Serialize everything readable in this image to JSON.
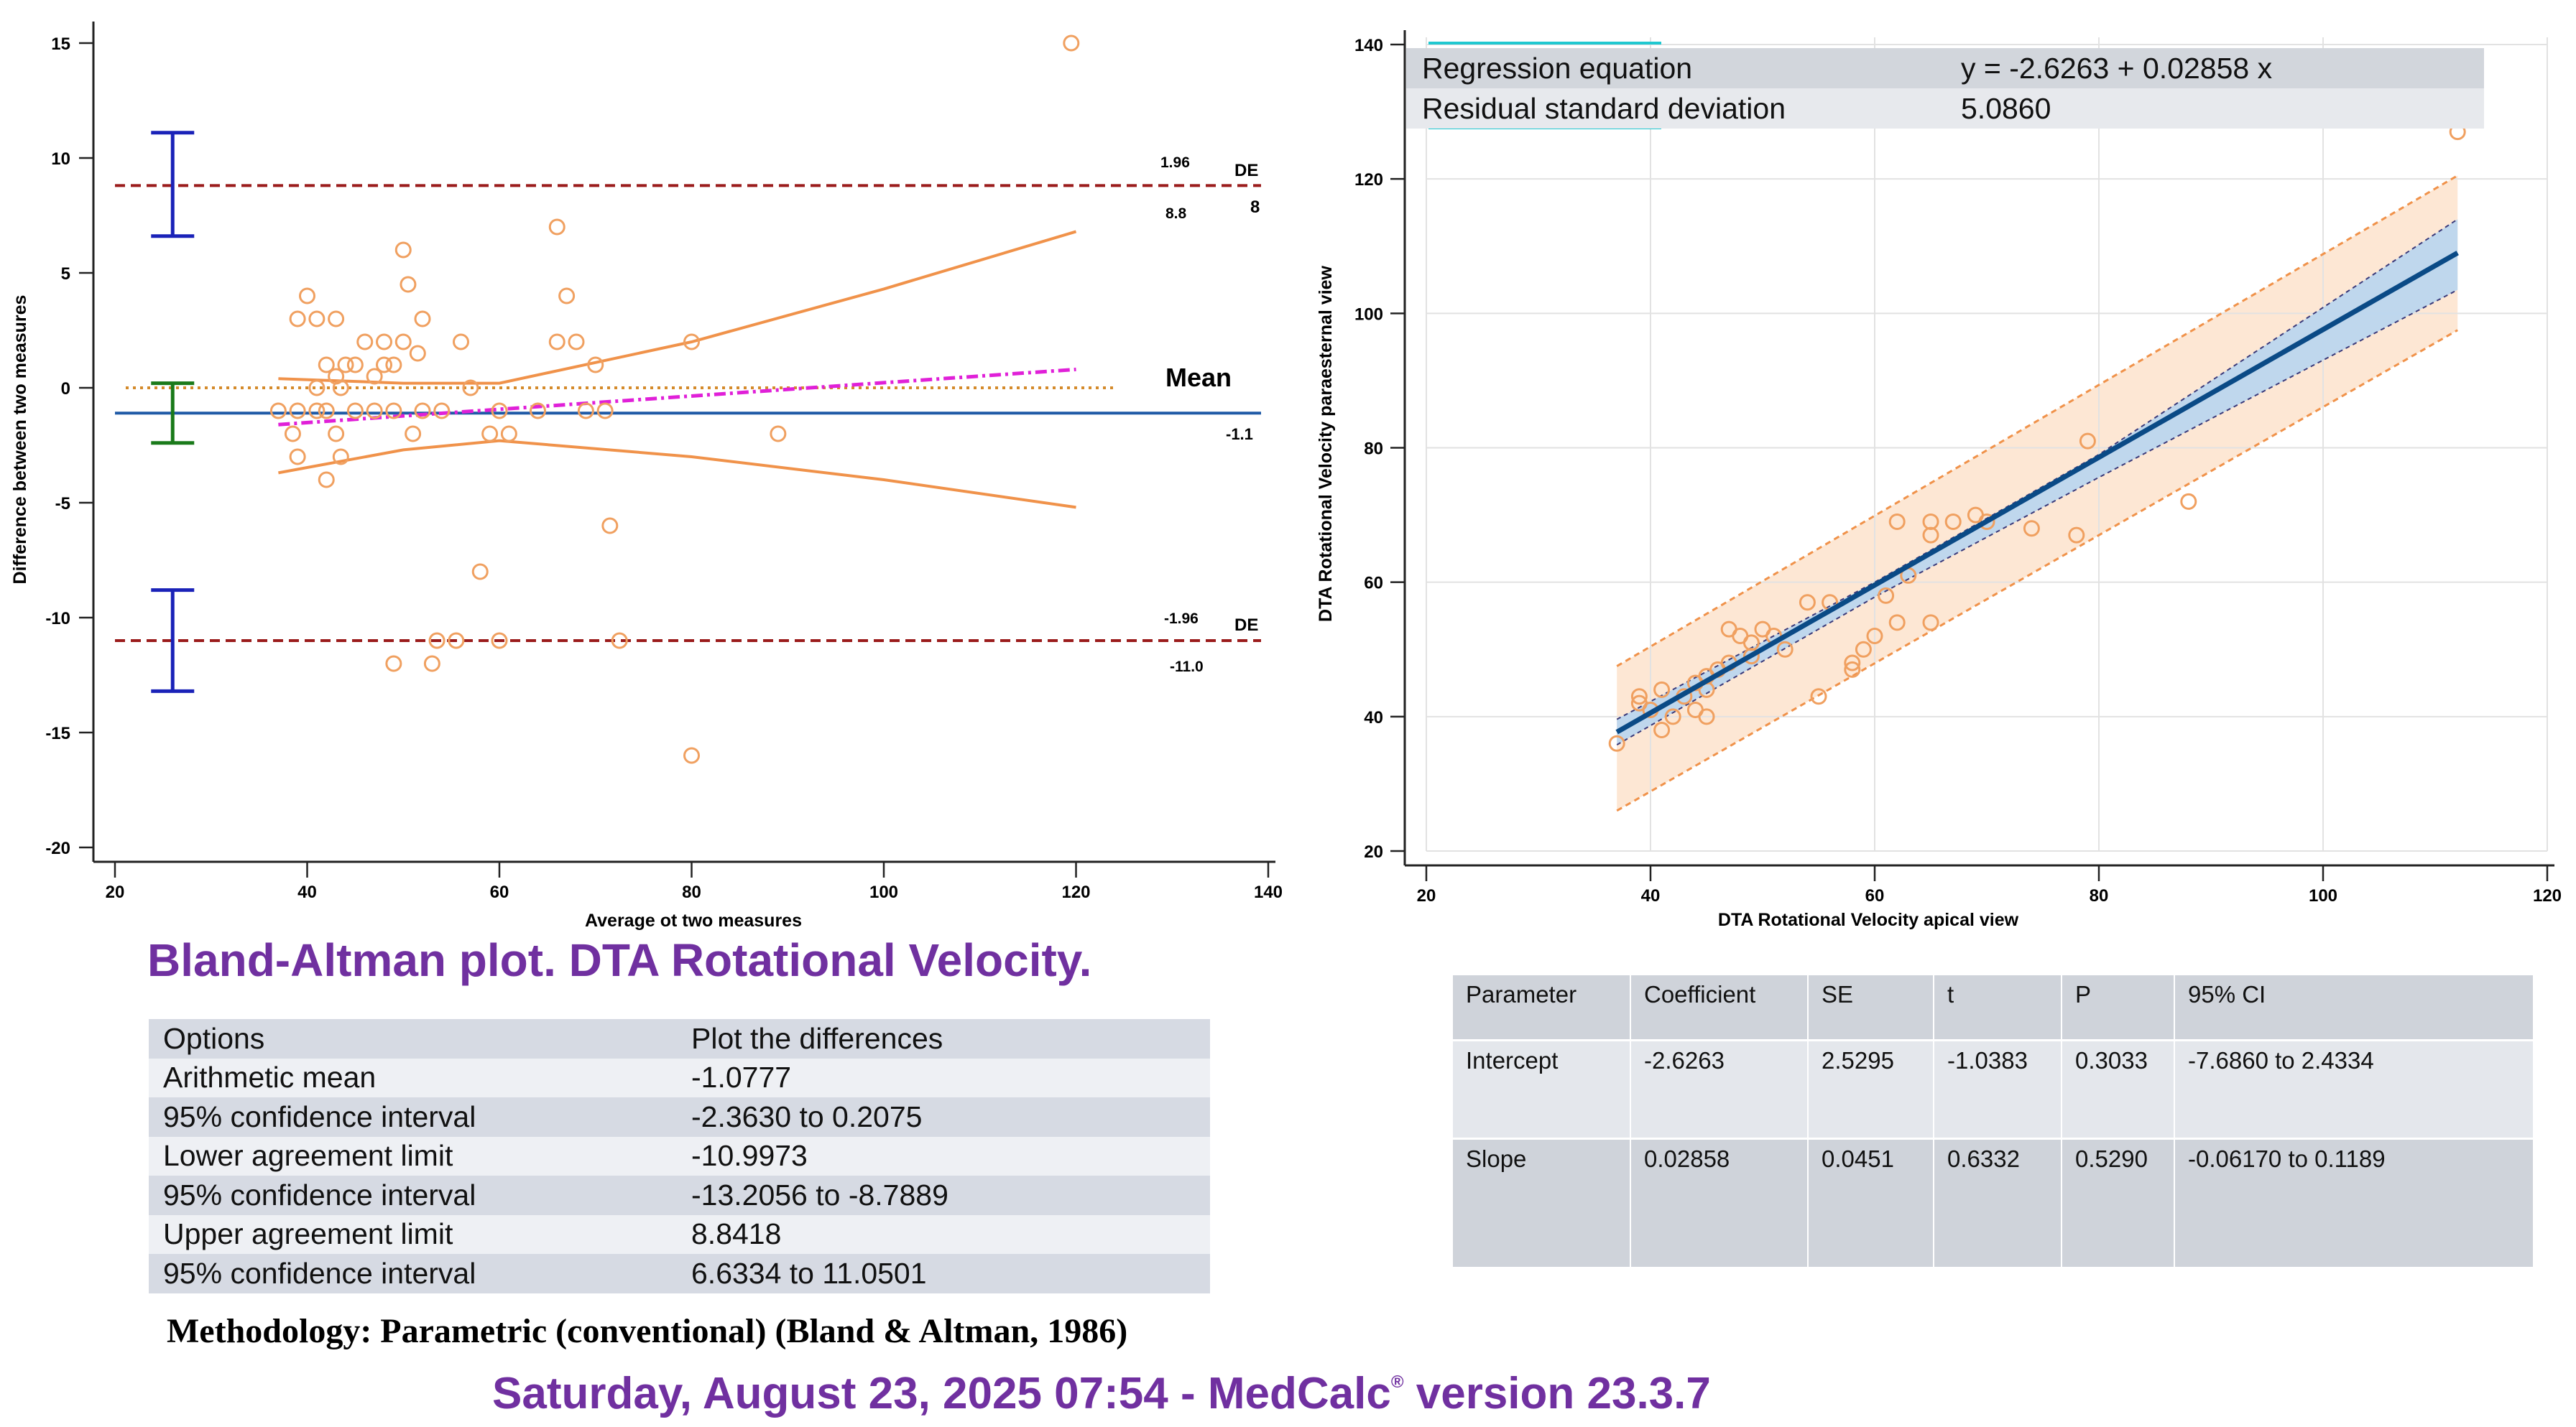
{
  "chart_data": [
    {
      "type": "scatter",
      "title": "",
      "xlabel": "Average ot two measures",
      "ylabel": "Difference between two measures",
      "xlim": [
        20,
        140
      ],
      "ylim": [
        -20,
        15
      ],
      "xticks": [
        20,
        40,
        60,
        80,
        100,
        120,
        140
      ],
      "yticks": [
        15,
        10,
        5,
        0,
        -5,
        -10,
        -15,
        -20
      ],
      "points": [
        [
          119.5,
          15
        ],
        [
          66,
          7
        ],
        [
          50,
          6
        ],
        [
          40,
          4
        ],
        [
          67,
          4
        ],
        [
          50.5,
          4.5
        ],
        [
          39,
          3
        ],
        [
          41,
          3
        ],
        [
          43,
          3
        ],
        [
          52,
          3
        ],
        [
          46,
          2
        ],
        [
          48,
          2
        ],
        [
          50,
          2
        ],
        [
          56,
          2
        ],
        [
          66,
          2
        ],
        [
          68,
          2
        ],
        [
          80,
          2
        ],
        [
          51.5,
          1.5
        ],
        [
          42,
          1
        ],
        [
          44,
          1
        ],
        [
          48,
          1
        ],
        [
          49,
          1
        ],
        [
          70,
          1
        ],
        [
          45,
          1
        ],
        [
          43,
          0.5
        ],
        [
          47,
          0.5
        ],
        [
          41,
          0
        ],
        [
          43.5,
          0
        ],
        [
          57,
          0
        ],
        [
          37,
          -1
        ],
        [
          39,
          -1
        ],
        [
          41,
          -1
        ],
        [
          42,
          -1
        ],
        [
          45,
          -1
        ],
        [
          47,
          -1
        ],
        [
          49,
          -1
        ],
        [
          52,
          -1
        ],
        [
          54,
          -1
        ],
        [
          60,
          -1
        ],
        [
          64,
          -1
        ],
        [
          69,
          -1
        ],
        [
          71,
          -1
        ],
        [
          38.5,
          -2
        ],
        [
          43,
          -2
        ],
        [
          51,
          -2
        ],
        [
          59,
          -2
        ],
        [
          61,
          -2
        ],
        [
          89,
          -2
        ],
        [
          39,
          -3
        ],
        [
          43.5,
          -3
        ],
        [
          42,
          -4
        ],
        [
          71.5,
          -6
        ],
        [
          58,
          -8
        ],
        [
          49,
          -12
        ],
        [
          53,
          -12
        ],
        [
          53.5,
          -11
        ],
        [
          55.5,
          -11
        ],
        [
          60,
          -11
        ],
        [
          72.5,
          -11
        ],
        [
          80,
          -16
        ]
      ],
      "reference_lines": [
        {
          "name": "Mean",
          "y": -1.1,
          "value_label": "-1.1",
          "color": "#1f5aa6",
          "style": "solid"
        },
        {
          "name": "+1.96 SD",
          "y": 8.8,
          "label_top": "1.96",
          "label_tag": "DE",
          "label_bottom": "8.8",
          "label_right": "8",
          "color": "#9b1c1c",
          "style": "dashed"
        },
        {
          "name": "-1.96 SD",
          "y": -11.0,
          "label_top": "-1.96",
          "label_tag": "DE",
          "label_bottom": "-11.0",
          "color": "#9b1c1c",
          "style": "dashed"
        },
        {
          "name": "zero",
          "y": 0,
          "color": "#d48a2a",
          "style": "dotted"
        }
      ],
      "mean_label": "Mean",
      "regression_line": {
        "x": [
          37,
          120
        ],
        "y": [
          -1.6,
          0.8
        ],
        "color": "#e020d8",
        "style": "dash-dot"
      },
      "regression_ci": {
        "upper": [
          [
            37,
            0.4
          ],
          [
            50,
            0.2
          ],
          [
            60,
            0.2
          ],
          [
            80,
            2
          ],
          [
            100,
            4.3
          ],
          [
            120,
            6.8
          ]
        ],
        "lower": [
          [
            37,
            -3.7
          ],
          [
            50,
            -2.7
          ],
          [
            60,
            -2.3
          ],
          [
            80,
            -3.0
          ],
          [
            100,
            -4.0
          ],
          [
            120,
            -5.2
          ]
        ],
        "color": "#f0924a"
      },
      "ci_bars": [
        {
          "x": 26,
          "low": 6.6,
          "high": 11.1,
          "color": "#1a22b8"
        },
        {
          "x": 26,
          "low": -2.4,
          "high": 0.2,
          "color": "#1a7a1a"
        },
        {
          "x": 26,
          "low": -13.2,
          "high": -8.8,
          "color": "#1a22b8"
        }
      ]
    },
    {
      "type": "scatter",
      "title": "",
      "xlabel": "DTA Rotational Velocity apical view",
      "ylabel": "DTA Rotational Velocity paraesternal view",
      "xlim": [
        20,
        120
      ],
      "ylim": [
        20,
        140
      ],
      "xticks": [
        20,
        40,
        60,
        80,
        100,
        120
      ],
      "yticks": [
        140,
        120,
        100,
        80,
        60,
        40,
        20
      ],
      "points": [
        [
          37,
          36
        ],
        [
          39,
          42
        ],
        [
          39,
          43
        ],
        [
          40,
          41
        ],
        [
          41,
          44
        ],
        [
          41,
          38
        ],
        [
          42,
          40
        ],
        [
          43,
          43
        ],
        [
          44,
          41
        ],
        [
          44,
          45
        ],
        [
          45,
          40
        ],
        [
          45,
          44
        ],
        [
          45,
          46
        ],
        [
          46,
          47
        ],
        [
          47,
          48
        ],
        [
          47,
          53
        ],
        [
          48,
          52
        ],
        [
          49,
          49
        ],
        [
          49,
          51
        ],
        [
          50,
          53
        ],
        [
          51,
          52
        ],
        [
          52,
          50
        ],
        [
          54,
          57
        ],
        [
          55,
          43
        ],
        [
          56,
          57
        ],
        [
          58,
          47
        ],
        [
          58,
          48
        ],
        [
          59,
          50
        ],
        [
          60,
          52
        ],
        [
          61,
          58
        ],
        [
          62,
          54
        ],
        [
          62,
          69
        ],
        [
          63,
          61
        ],
        [
          65,
          67
        ],
        [
          65,
          69
        ],
        [
          65,
          54
        ],
        [
          67,
          69
        ],
        [
          69,
          70
        ],
        [
          70,
          69
        ],
        [
          74,
          68
        ],
        [
          78,
          67
        ],
        [
          79,
          81
        ],
        [
          88,
          72
        ],
        [
          112,
          127
        ]
      ],
      "fit_line": {
        "x": [
          37,
          112
        ],
        "y": [
          37.7,
          109
        ]
      },
      "fit_ci": {
        "upper": [
          [
            37,
            39.6
          ],
          [
            60,
            60
          ],
          [
            80,
            79
          ],
          [
            112,
            114
          ]
        ],
        "lower": [
          [
            37,
            35.8
          ],
          [
            60,
            57.8
          ],
          [
            80,
            75.6
          ],
          [
            112,
            103.5
          ]
        ]
      },
      "prediction_band": {
        "upper": [
          [
            37,
            47.5
          ],
          [
            112,
            120.5
          ]
        ],
        "lower": [
          [
            37,
            26
          ],
          [
            112,
            97.5
          ]
        ]
      }
    }
  ],
  "ba_title": "Bland-Altman plot. DTA Rotational Velocity.",
  "ba_table": [
    [
      "Options",
      "Plot the differences"
    ],
    [
      "Arithmetic mean",
      "-1.0777"
    ],
    [
      "95% confidence interval",
      "-2.3630 to 0.2075"
    ],
    [
      "Lower agreement limit",
      "-10.9973"
    ],
    [
      "95% confidence interval",
      "-13.2056 to -8.7889"
    ],
    [
      "Upper agreement limit",
      "8.8418"
    ],
    [
      "95% confidence interval",
      "6.6334 to 11.0501"
    ]
  ],
  "methodology": "Methodology: Parametric (conventional) (Bland & Altman, 1986)",
  "footer": {
    "main": "Saturday, August 23, 2025 07:54 - MedCalc",
    "reg": "®",
    "version": " version 23.3.7"
  },
  "equation_table": [
    [
      "Regression equation",
      "y = -2.6263 + 0.02858 x"
    ],
    [
      "Residual standard deviation",
      "5.0860"
    ]
  ],
  "regression_table": {
    "headers": [
      "Parameter",
      "Coefficient",
      "SE",
      "t",
      "P",
      "95% CI"
    ],
    "rows": [
      [
        "Intercept",
        "-2.6263",
        "2.5295",
        "-1.0383",
        "0.3033",
        "-7.6860 to 2.4334"
      ],
      [
        "Slope",
        "0.02858",
        "0.0451",
        "0.6332",
        "0.5290",
        "-0.06170 to 0.1189"
      ]
    ]
  },
  "colors": {
    "title_purple": "#7030a0",
    "point_orange": "#f0a060",
    "band_fill": "#fde3cc",
    "ci_fill": "#bcd6ee",
    "fit_line": "#0a4a86"
  }
}
